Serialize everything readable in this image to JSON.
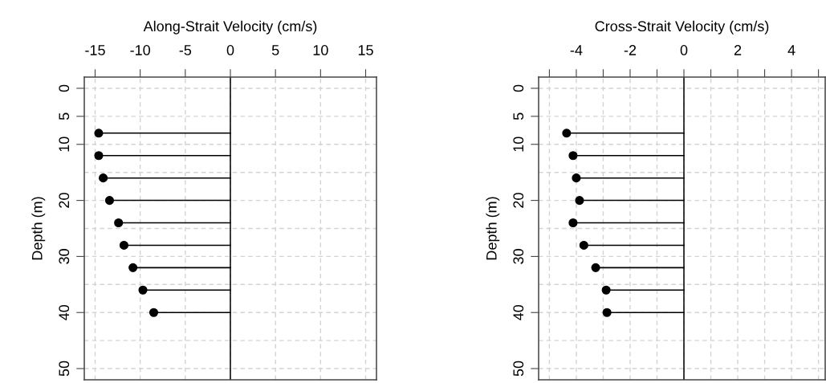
{
  "chart_data": [
    {
      "type": "lollipop",
      "orientation": "horizontal",
      "xlabel": "Along-Strait Velocity (cm/s)",
      "ylabel": "Depth (m)",
      "x": [
        8,
        12,
        16,
        20,
        24,
        28,
        32,
        36,
        40
      ],
      "values": [
        -14.6,
        -14.6,
        -14.1,
        -13.4,
        -12.4,
        -11.8,
        -10.8,
        -9.7,
        -8.5
      ],
      "color": "#000000",
      "marker": "circle",
      "xlim": [
        -16.2,
        16.2
      ],
      "xticks": [
        -15,
        -10,
        -5,
        0,
        5,
        10,
        15
      ],
      "ylim": [
        52,
        -2
      ],
      "yticks": [
        0,
        5,
        10,
        {
          "value": 15,
          "label": null
        },
        20,
        {
          "value": 25,
          "label": null
        },
        30,
        {
          "value": 35,
          "label": null
        },
        40,
        {
          "value": 45,
          "label": null
        },
        50
      ],
      "ref_lines": [
        {
          "axis": "x",
          "value": 0,
          "color": "#000000"
        }
      ],
      "grid": true
    },
    {
      "type": "lollipop",
      "orientation": "horizontal",
      "xlabel": "Cross-Strait Velocity (cm/s)",
      "ylabel": "Depth (m)",
      "x": [
        8,
        12,
        16,
        20,
        24,
        28,
        32,
        36,
        40
      ],
      "values": [
        -4.36,
        -4.12,
        -4.0,
        -3.88,
        -4.12,
        -3.72,
        -3.28,
        -2.89,
        -2.86
      ],
      "color": "#000000",
      "marker": "circle",
      "xlim": [
        -5.4,
        5.25
      ],
      "xticks": [
        {
          "value": -5,
          "label": null
        },
        -4,
        {
          "value": -3,
          "label": null
        },
        -2,
        {
          "value": -1,
          "label": null
        },
        0,
        {
          "value": 1,
          "label": null
        },
        2,
        {
          "value": 3,
          "label": null
        },
        4,
        {
          "value": 5,
          "label": null
        }
      ],
      "ylim": [
        52,
        -2
      ],
      "yticks": [
        0,
        5,
        10,
        {
          "value": 15,
          "label": null
        },
        20,
        {
          "value": 25,
          "label": null
        },
        30,
        {
          "value": 35,
          "label": null
        },
        40,
        {
          "value": 45,
          "label": null
        },
        50
      ],
      "ref_lines": [
        {
          "axis": "x",
          "value": 0,
          "color": "#000000"
        }
      ],
      "grid": true
    }
  ]
}
